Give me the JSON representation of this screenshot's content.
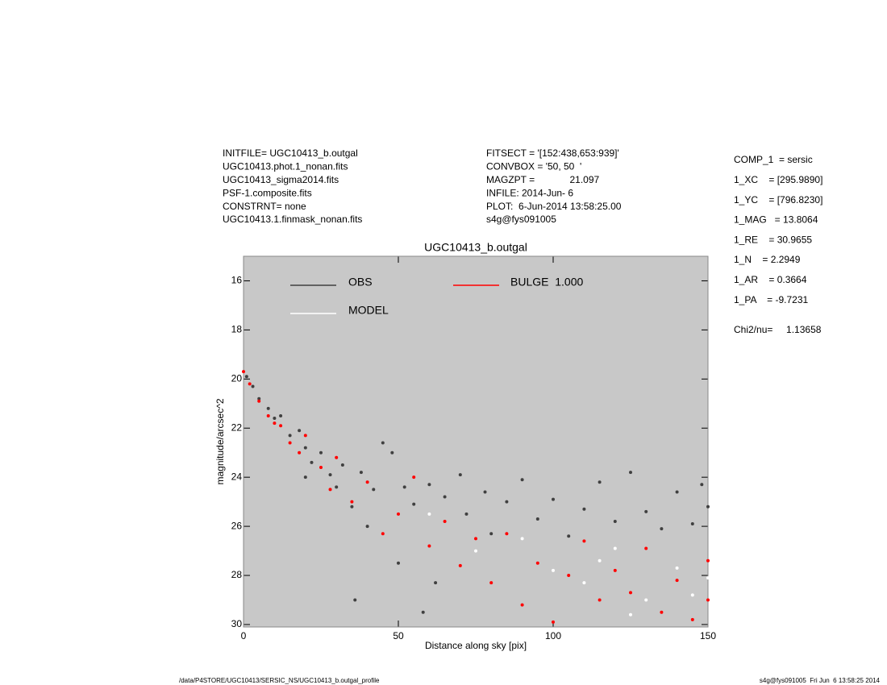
{
  "info": {
    "left": [
      "INITFILE= UGC10413_b.outgal",
      "UGC10413.phot.1_nonan.fits",
      "UGC10413_sigma2014.fits",
      "PSF-1.composite.fits",
      "CONSTRNT= none",
      "UGC10413.1.finmask_nonan.fits"
    ],
    "middle": [
      "FITSECT = '[152:438,653:939]'",
      "CONVBOX = '50, 50  '",
      "MAGZPT =             21.097",
      "INFILE: 2014-Jun- 6",
      "PLOT:  6-Jun-2014 13:58:25.00",
      "s4g@fys091005"
    ],
    "params": [
      "COMP_1  = sersic",
      "1_XC    = [295.9890]",
      "1_YC    = [796.8230]",
      "1_MAG   = 13.8064",
      "1_RE    = 30.9655",
      "1_N    = 2.2949",
      "1_AR    = 0.3664",
      "1_PA    = -9.7231"
    ],
    "chi2": "Chi2/nu=     1.13658",
    "footer_left": "/data/P4STORE/UGC10413/SERSIC_NS/UGC10413_b.outgal_profile",
    "footer_right": "s4g@fys091005  Fri Jun  6 13:58:25 2014"
  },
  "chart_data": {
    "type": "scatter",
    "title": "UGC10413_b.outgal",
    "x_label": "Distance along sky [pix]",
    "y_label": "magnitude/arcsec^2",
    "xlim": [
      0,
      150
    ],
    "ylim": [
      30.1,
      15
    ],
    "xticks": [
      0,
      50,
      100,
      150
    ],
    "yticks": [
      16,
      18,
      20,
      22,
      24,
      26,
      28,
      30
    ],
    "grid": false,
    "background": "#c8c8c8",
    "series": [
      {
        "name": "OBS",
        "color": "#404040",
        "x": [
          1,
          3,
          5,
          8,
          10,
          12,
          15,
          18,
          20,
          22,
          25,
          28,
          30,
          32,
          35,
          38,
          40,
          42,
          45,
          48,
          50,
          52,
          55,
          60,
          62,
          65,
          70,
          72,
          78,
          80,
          85,
          90,
          95,
          100,
          105,
          110,
          115,
          120,
          125,
          130,
          135,
          140,
          145,
          148,
          150,
          36,
          58,
          20
        ],
        "values": [
          19.9,
          20.3,
          20.8,
          21.2,
          21.6,
          21.5,
          22.3,
          22.1,
          22.8,
          23.4,
          23.0,
          23.9,
          24.4,
          23.5,
          25.2,
          23.8,
          26.0,
          24.5,
          22.6,
          23.0,
          27.5,
          24.4,
          25.1,
          24.3,
          28.3,
          24.8,
          23.9,
          25.5,
          24.6,
          26.3,
          25.0,
          24.1,
          25.7,
          24.9,
          26.4,
          25.3,
          24.2,
          25.8,
          23.8,
          25.4,
          26.1,
          24.6,
          25.9,
          24.3,
          25.2,
          29.0,
          29.5,
          24.0
        ]
      },
      {
        "name": "MODEL",
        "color": "#ffffff",
        "x": [
          60,
          75,
          90,
          100,
          110,
          120,
          130,
          140,
          145,
          150,
          125,
          115
        ],
        "values": [
          25.5,
          27.0,
          26.5,
          27.8,
          28.3,
          26.9,
          29.0,
          27.7,
          28.8,
          28.1,
          29.6,
          27.4
        ]
      },
      {
        "name": "BULGE  1.000",
        "color": "#ff0000",
        "x": [
          0,
          2,
          5,
          8,
          10,
          12,
          15,
          18,
          20,
          25,
          28,
          30,
          35,
          40,
          45,
          50,
          55,
          60,
          65,
          70,
          75,
          80,
          85,
          90,
          95,
          100,
          105,
          110,
          115,
          120,
          125,
          130,
          135,
          140,
          145,
          150,
          150
        ],
        "values": [
          19.7,
          20.2,
          20.9,
          21.5,
          21.8,
          21.9,
          22.6,
          23.0,
          22.3,
          23.6,
          24.5,
          23.2,
          25.0,
          24.2,
          26.3,
          25.5,
          24.0,
          26.8,
          25.8,
          27.6,
          26.5,
          28.3,
          26.3,
          29.2,
          27.5,
          29.9,
          28.0,
          26.6,
          29.0,
          27.8,
          28.7,
          26.9,
          29.5,
          28.2,
          29.8,
          27.4,
          29.0
        ]
      }
    ]
  }
}
